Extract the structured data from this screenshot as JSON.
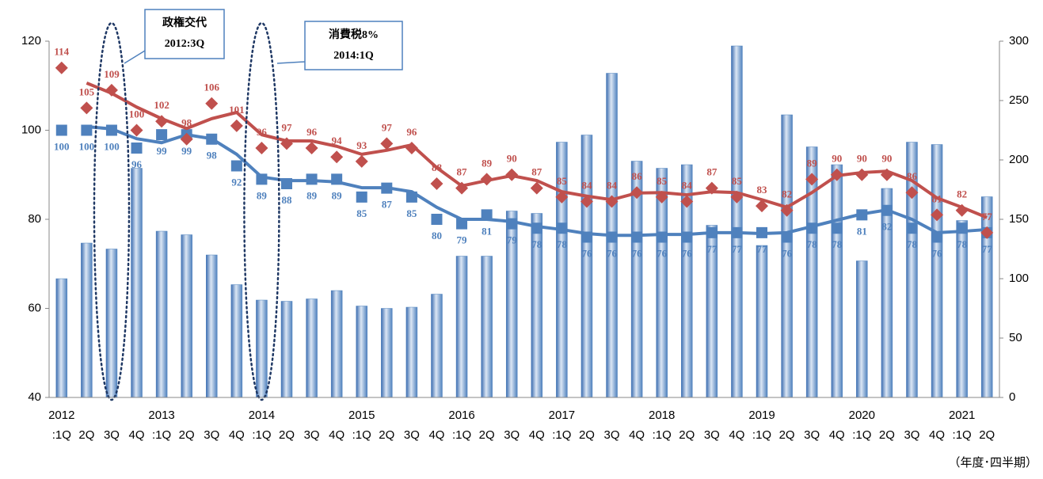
{
  "chart_data": {
    "type": "combo",
    "categories": [
      ":1Q",
      "2Q",
      "3Q",
      "4Q",
      ":1Q",
      "2Q",
      "3Q",
      "4Q",
      ":1Q",
      "2Q",
      "3Q",
      "4Q",
      ":1Q",
      "2Q",
      "3Q",
      "4Q",
      ":1Q",
      "2Q",
      "3Q",
      "4Q",
      ":1Q",
      "2Q",
      "3Q",
      "4Q",
      ":1Q",
      "2Q",
      "3Q",
      "4Q",
      ":1Q",
      "2Q",
      "3Q",
      "4Q",
      ":1Q",
      "2Q",
      "3Q",
      "4Q",
      ":1Q",
      "2Q"
    ],
    "years": [
      "2012",
      null,
      null,
      null,
      "2013",
      null,
      null,
      null,
      "2014",
      null,
      null,
      null,
      "2015",
      null,
      null,
      null,
      "2016",
      null,
      null,
      null,
      "2017",
      null,
      null,
      null,
      "2018",
      null,
      null,
      null,
      "2019",
      null,
      null,
      null,
      "2020",
      null,
      null,
      null,
      "2021",
      null
    ],
    "ylim": [
      40,
      120
    ],
    "yticks": [
      40,
      60,
      80,
      100,
      120
    ],
    "y2lim": [
      0,
      300
    ],
    "y2ticks": [
      0,
      50,
      100,
      150,
      200,
      250,
      300
    ],
    "series": [
      {
        "type": "bar",
        "axis": "y2",
        "color": "#4f81bd",
        "values": [
          100,
          130,
          125,
          193,
          140,
          137,
          120,
          95,
          82,
          81,
          83,
          90,
          77,
          75,
          76,
          87,
          119,
          119,
          157,
          155,
          215,
          221,
          273,
          199,
          193,
          196,
          145,
          296,
          128,
          238,
          211,
          196,
          115,
          176,
          215,
          213,
          149,
          169
        ]
      },
      {
        "type": "line",
        "color": "#4f81bd",
        "marker": "square",
        "values": [
          100,
          100,
          100,
          96,
          99,
          99,
          98,
          92,
          89,
          88,
          89,
          89,
          85,
          87,
          85,
          80,
          79,
          81,
          79,
          78,
          78,
          76,
          76,
          76,
          76,
          76,
          77,
          77,
          77,
          76,
          78,
          78,
          81,
          82,
          78,
          76,
          78,
          77
        ],
        "trend": [
          null,
          100.8,
          100.3,
          98.1,
          97.2,
          99,
          98.1,
          94.6,
          89.5,
          88.7,
          88.7,
          88.4,
          87.1,
          87.1,
          86.2,
          82.7,
          80,
          80,
          79.5,
          78.4,
          77.7,
          76.8,
          76.4,
          76.4,
          76.6,
          76.6,
          77,
          77,
          76.8,
          77,
          78.4,
          79.8,
          81.2,
          82.1,
          80,
          77,
          77.3,
          77.7
        ]
      },
      {
        "type": "line",
        "color": "#c0504d",
        "marker": "diamond",
        "values": [
          114,
          105,
          109,
          100,
          102,
          98,
          106,
          101,
          96,
          97,
          96,
          94,
          93,
          97,
          96,
          88,
          87,
          89,
          90,
          87,
          85,
          84,
          84,
          86,
          85,
          84,
          87,
          85,
          83,
          82,
          89,
          90,
          90,
          90,
          86,
          81,
          82,
          77
        ],
        "trend": [
          null,
          110.6,
          108.3,
          105.2,
          102.6,
          100.4,
          102.6,
          104,
          99,
          97.6,
          97.6,
          96.4,
          94.6,
          95.5,
          96.7,
          91.6,
          87.5,
          88.7,
          89.8,
          88.7,
          86.2,
          85.2,
          84.4,
          85.9,
          86,
          85.5,
          86.2,
          86,
          84.4,
          82.7,
          86,
          89.8,
          90.5,
          90.8,
          88.7,
          84.8,
          82.7,
          80.4
        ]
      }
    ],
    "annotations": [
      {
        "lines": [
          "政権交代",
          "2012:3Q"
        ],
        "category": 2
      },
      {
        "lines": [
          "消費税8%",
          "2014:1Q"
        ],
        "category": 8
      }
    ],
    "unit_note": "（年度･四半期）"
  }
}
